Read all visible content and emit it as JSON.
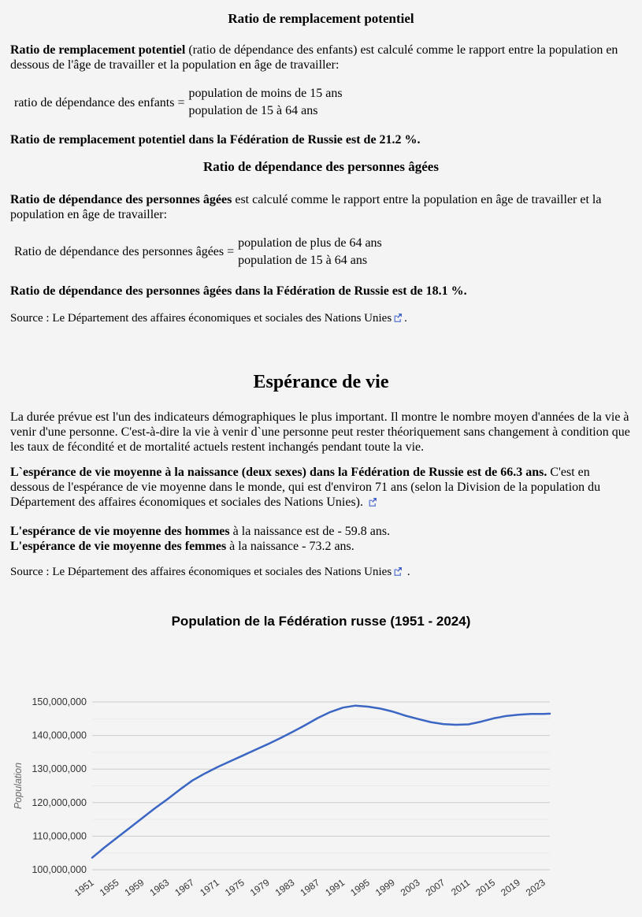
{
  "colors": {
    "background": "#f4f4f4",
    "line": "#3b66c4",
    "grid_major": "#cccccc",
    "grid_minor": "#e9e9e9",
    "axis_text": "#333333",
    "axis_title": "#666666",
    "link_icon": "#4466cc"
  },
  "sections": {
    "replacement": {
      "heading": "Ratio de remplacement potentiel",
      "para_bold": "Ratio de remplacement potentiel",
      "para_rest": " (ratio de dépendance des enfants) est calculé comme le rapport entre la population en dessous de l'âge de travailler et la population en âge de travailler:",
      "formula_label": "ratio de dépendance des enfants =",
      "formula_numerator": "population de moins de 15 ans",
      "formula_denominator": "population de 15 à 64 ans",
      "result": "Ratio de remplacement potentiel dans la Fédération de Russie est de 21.2 %."
    },
    "elderly": {
      "heading": "Ratio de dépendance des personnes âgées",
      "para_bold": "Ratio de dépendance des personnes âgées",
      "para_rest": " est calculé comme le rapport entre la population en âge de travailler et la population en âge de travailler:",
      "formula_label": "Ratio de dépendance des personnes âgées =",
      "formula_numerator": "population de plus de 64 ans",
      "formula_denominator": "population de 15 à 64 ans",
      "result": "Ratio de dépendance des personnes âgées dans la Fédération de Russie est de 18.1 %.",
      "source_prefix": "Source : ",
      "source_link_text": "Le Département des affaires économiques et sociales des Nations Unies",
      "source_suffix": "."
    },
    "life_expectancy": {
      "heading": "Espérance de vie",
      "intro": "La durée prévue est l'un des indicateurs démographiques le plus important. Il montre le nombre moyen d'années de la vie à venir d'une personne. C'est-à-dire la vie à venir d`une personne peut rester théoriquement sans changement à condition que les taux de fécondité et de mortalité actuels restent inchangés pendant toute la vie.",
      "both_sexes_bold": "L`espérance de vie moyenne à la naissance (deux sexes) dans la Fédération de Russie est de 66.3 ans.",
      "both_sexes_rest": " C'est en dessous de l'espérance de vie moyenne dans le monde, qui est d'environ 71 ans (selon la Division de la population du Département des affaires économiques et sociales des Nations Unies). ",
      "men_bold": "L'espérance de vie moyenne des hommes",
      "men_rest": " à la naissance est de - 59.8 ans.",
      "women_bold": "L'espérance de vie moyenne des femmes",
      "women_rest": " à la naissance - 73.2 ans.",
      "source_prefix": "Source : ",
      "source_link_text": "Le Département des affaires économiques et sociales des Nations Unies",
      "source_suffix": " ."
    }
  },
  "chart_data": {
    "type": "line",
    "title": "Population de la Fédération russe (1951 - 2024)",
    "xlabel": "",
    "ylabel": "Population",
    "legend": "none",
    "grid": true,
    "line_color": "#3b66c4",
    "xlim": [
      1951,
      2024
    ],
    "ylim": [
      100000000,
      150000000
    ],
    "x_ticks": [
      1951,
      1955,
      1959,
      1963,
      1967,
      1971,
      1975,
      1979,
      1983,
      1987,
      1991,
      1995,
      1999,
      2003,
      2007,
      2011,
      2015,
      2019,
      2023
    ],
    "y_ticks": [
      100000000,
      110000000,
      120000000,
      130000000,
      140000000,
      150000000
    ],
    "y_minor_step": 5000000,
    "series": [
      {
        "name": "Population",
        "points": [
          [
            1951,
            103600000
          ],
          [
            1953,
            106700000
          ],
          [
            1955,
            109600000
          ],
          [
            1957,
            112500000
          ],
          [
            1959,
            115400000
          ],
          [
            1961,
            118300000
          ],
          [
            1963,
            121000000
          ],
          [
            1965,
            123900000
          ],
          [
            1967,
            126600000
          ],
          [
            1969,
            128700000
          ],
          [
            1971,
            130600000
          ],
          [
            1973,
            132300000
          ],
          [
            1975,
            134000000
          ],
          [
            1977,
            135700000
          ],
          [
            1979,
            137400000
          ],
          [
            1981,
            139200000
          ],
          [
            1983,
            141100000
          ],
          [
            1985,
            143100000
          ],
          [
            1987,
            145200000
          ],
          [
            1989,
            147000000
          ],
          [
            1991,
            148300000
          ],
          [
            1993,
            148900000
          ],
          [
            1995,
            148600000
          ],
          [
            1997,
            148000000
          ],
          [
            1999,
            147100000
          ],
          [
            2001,
            145900000
          ],
          [
            2003,
            144900000
          ],
          [
            2005,
            144000000
          ],
          [
            2007,
            143400000
          ],
          [
            2009,
            143200000
          ],
          [
            2011,
            143300000
          ],
          [
            2013,
            144100000
          ],
          [
            2015,
            145100000
          ],
          [
            2017,
            145800000
          ],
          [
            2019,
            146200000
          ],
          [
            2021,
            146400000
          ],
          [
            2023,
            146400000
          ],
          [
            2024,
            146500000
          ]
        ]
      }
    ]
  }
}
